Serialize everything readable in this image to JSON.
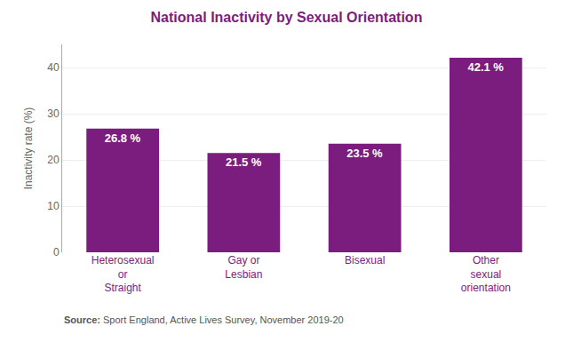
{
  "chart_data": {
    "type": "bar",
    "title": "National Inactivity by Sexual Orientation",
    "categories": [
      "Heterosexual\nor\nStraight",
      "Gay or\nLesbian",
      "Bisexual",
      "Other\nsexual\norientation"
    ],
    "values": [
      26.8,
      21.5,
      23.5,
      42.1
    ],
    "value_labels": [
      "26.8 %",
      "21.5 %",
      "23.5 %",
      "42.1 %"
    ],
    "data_labels": true,
    "color": "#7B1D7E",
    "ylabel": "Inactivity rate (%)",
    "ylim": [
      0,
      45
    ],
    "yticks": [
      0,
      10,
      20,
      30,
      40
    ],
    "grid": true,
    "annotations": [
      "Source:",
      " Sport England, Active Lives Survey, November 2019-20"
    ]
  }
}
